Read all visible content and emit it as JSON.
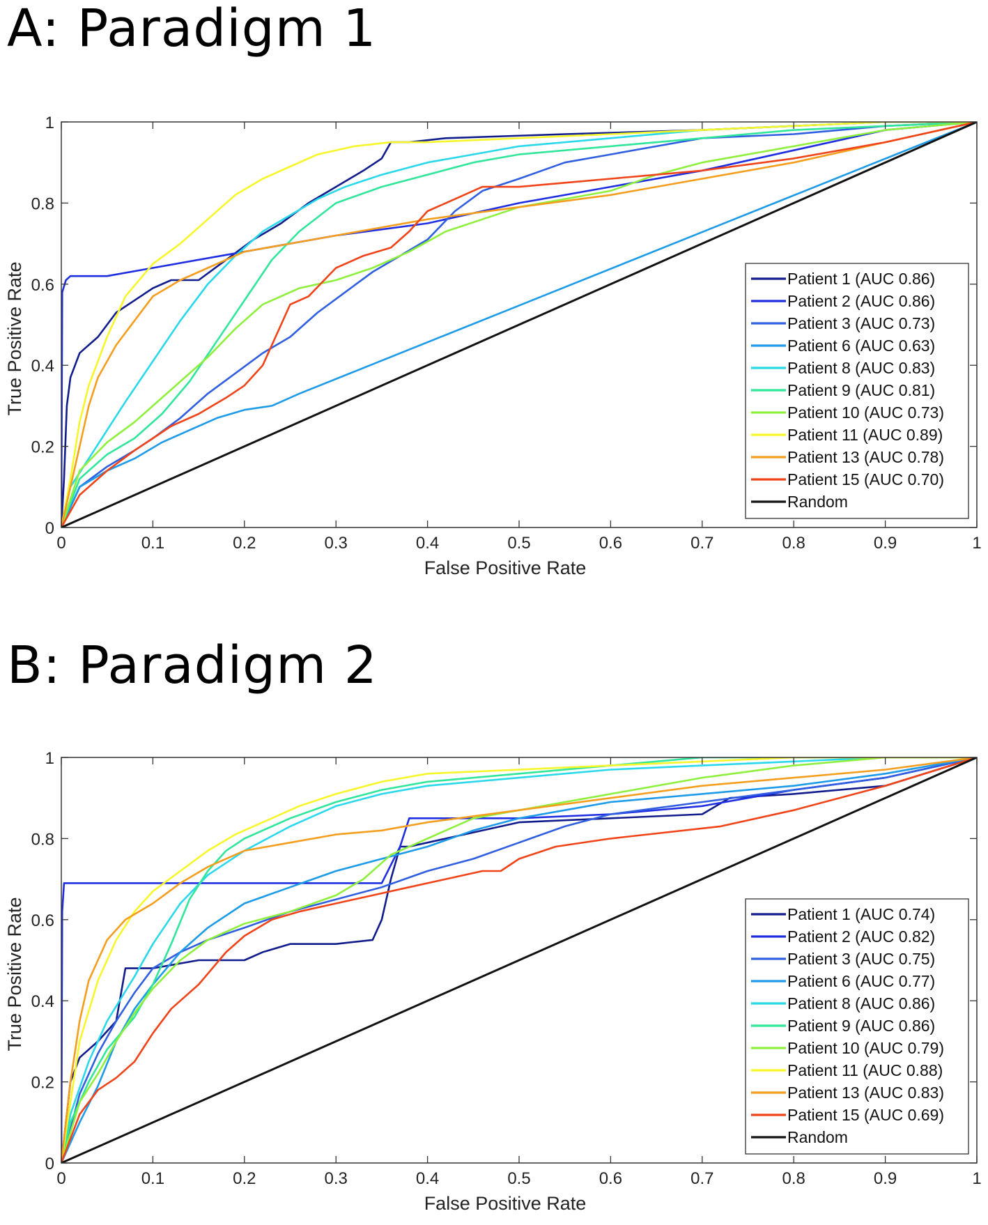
{
  "panels": [
    {
      "title": "A: Paradigm 1"
    },
    {
      "title": "B: Paradigm 2"
    }
  ],
  "chart_data": [
    {
      "type": "line",
      "title": "A: Paradigm 1",
      "xlabel": "False Positive Rate",
      "ylabel": "True Positive Rate",
      "xlim": [
        0,
        1
      ],
      "ylim": [
        0,
        1
      ],
      "xticks": [
        "0",
        "0.1",
        "0.2",
        "0.3",
        "0.4",
        "0.5",
        "0.6",
        "0.7",
        "0.8",
        "0.9",
        "1"
      ],
      "yticks": [
        "0",
        "0.2",
        "0.4",
        "0.6",
        "0.8",
        "1"
      ],
      "legend_position": "lower-right",
      "series": [
        {
          "name": "Patient 1 (AUC 0.86)",
          "color": "#101c8c",
          "x": [
            0,
            0.003,
            0.006,
            0.01,
            0.02,
            0.03,
            0.04,
            0.05,
            0.06,
            0.08,
            0.1,
            0.12,
            0.15,
            0.18,
            0.21,
            0.24,
            0.27,
            0.3,
            0.33,
            0.35,
            0.36,
            0.38,
            0.42,
            0.55,
            0.7,
            0.8,
            0.9,
            1
          ],
          "y": [
            0,
            0.12,
            0.3,
            0.37,
            0.43,
            0.45,
            0.47,
            0.5,
            0.53,
            0.56,
            0.59,
            0.61,
            0.61,
            0.66,
            0.71,
            0.75,
            0.8,
            0.84,
            0.88,
            0.91,
            0.95,
            0.95,
            0.96,
            0.97,
            0.98,
            0.99,
            1,
            1
          ]
        },
        {
          "name": "Patient 2 (AUC 0.86)",
          "color": "#1e2ee0",
          "x": [
            0,
            0.001,
            0.005,
            0.01,
            0.05,
            0.1,
            0.2,
            0.3,
            0.4,
            0.5,
            0.6,
            0.7,
            0.8,
            0.9,
            1
          ],
          "y": [
            0,
            0.58,
            0.61,
            0.62,
            0.62,
            0.64,
            0.68,
            0.72,
            0.75,
            0.8,
            0.84,
            0.88,
            0.93,
            0.98,
            1
          ]
        },
        {
          "name": "Patient 3 (AUC 0.73)",
          "color": "#2f5ee0",
          "x": [
            0,
            0.02,
            0.05,
            0.08,
            0.1,
            0.13,
            0.16,
            0.19,
            0.22,
            0.25,
            0.28,
            0.31,
            0.34,
            0.37,
            0.4,
            0.43,
            0.46,
            0.5,
            0.55,
            0.6,
            0.65,
            0.7,
            0.8,
            0.9,
            1
          ],
          "y": [
            0,
            0.1,
            0.15,
            0.19,
            0.22,
            0.27,
            0.33,
            0.38,
            0.43,
            0.47,
            0.53,
            0.58,
            0.63,
            0.67,
            0.71,
            0.78,
            0.83,
            0.86,
            0.9,
            0.92,
            0.94,
            0.96,
            0.97,
            0.99,
            1
          ]
        },
        {
          "name": "Patient 6 (AUC 0.63)",
          "color": "#1d9be8",
          "x": [
            0,
            0.02,
            0.05,
            0.08,
            0.11,
            0.14,
            0.17,
            0.2,
            0.23,
            0.26,
            1
          ],
          "y": [
            0,
            0.1,
            0.14,
            0.17,
            0.21,
            0.24,
            0.27,
            0.29,
            0.3,
            0.33,
            1
          ]
        },
        {
          "name": "Patient 8 (AUC 0.83)",
          "color": "#2ad8ec",
          "x": [
            0,
            0.01,
            0.03,
            0.05,
            0.07,
            0.1,
            0.13,
            0.16,
            0.19,
            0.22,
            0.25,
            0.28,
            0.31,
            0.35,
            0.4,
            0.45,
            0.5,
            0.6,
            0.7,
            0.8,
            0.9,
            1
          ],
          "y": [
            0,
            0.1,
            0.17,
            0.24,
            0.31,
            0.41,
            0.51,
            0.6,
            0.67,
            0.73,
            0.77,
            0.81,
            0.84,
            0.87,
            0.9,
            0.92,
            0.94,
            0.96,
            0.98,
            0.99,
            1,
            1
          ]
        },
        {
          "name": "Patient 9 (AUC 0.81)",
          "color": "#2fe69a",
          "x": [
            0,
            0.02,
            0.05,
            0.08,
            0.11,
            0.14,
            0.17,
            0.2,
            0.23,
            0.26,
            0.3,
            0.35,
            0.4,
            0.45,
            0.5,
            0.6,
            0.7,
            0.8,
            0.9,
            1
          ],
          "y": [
            0,
            0.12,
            0.18,
            0.22,
            0.28,
            0.36,
            0.46,
            0.56,
            0.66,
            0.73,
            0.8,
            0.84,
            0.87,
            0.9,
            0.92,
            0.94,
            0.96,
            0.98,
            0.99,
            1
          ]
        },
        {
          "name": "Patient 10 (AUC 0.73)",
          "color": "#8ef03c",
          "x": [
            0,
            0.02,
            0.05,
            0.08,
            0.1,
            0.13,
            0.16,
            0.19,
            0.22,
            0.26,
            0.3,
            0.34,
            0.38,
            0.42,
            0.46,
            0.5,
            0.55,
            0.6,
            0.65,
            0.7,
            0.8,
            0.9,
            1
          ],
          "y": [
            0,
            0.14,
            0.21,
            0.26,
            0.3,
            0.36,
            0.42,
            0.49,
            0.55,
            0.59,
            0.61,
            0.64,
            0.68,
            0.73,
            0.76,
            0.79,
            0.81,
            0.83,
            0.87,
            0.9,
            0.94,
            0.98,
            1
          ]
        },
        {
          "name": "Patient 11 (AUC 0.89)",
          "color": "#f6f62a",
          "x": [
            0,
            0.01,
            0.02,
            0.03,
            0.05,
            0.07,
            0.1,
            0.13,
            0.16,
            0.19,
            0.22,
            0.25,
            0.28,
            0.32,
            0.36,
            0.4,
            0.5,
            0.6,
            0.7,
            0.8,
            0.9,
            1
          ],
          "y": [
            0,
            0.12,
            0.26,
            0.35,
            0.47,
            0.57,
            0.65,
            0.7,
            0.76,
            0.82,
            0.86,
            0.89,
            0.92,
            0.94,
            0.95,
            0.95,
            0.96,
            0.97,
            0.98,
            0.99,
            1,
            1
          ]
        },
        {
          "name": "Patient 13 (AUC 0.78)",
          "color": "#f59e1e",
          "x": [
            0,
            0.01,
            0.02,
            0.03,
            0.04,
            0.06,
            0.08,
            0.1,
            0.13,
            0.16,
            0.2,
            0.25,
            0.3,
            0.4,
            0.5,
            0.6,
            0.7,
            0.8,
            0.9,
            1
          ],
          "y": [
            0,
            0.1,
            0.2,
            0.3,
            0.37,
            0.45,
            0.51,
            0.57,
            0.61,
            0.64,
            0.68,
            0.7,
            0.72,
            0.76,
            0.79,
            0.82,
            0.86,
            0.9,
            0.95,
            1
          ]
        },
        {
          "name": "Patient 15 (AUC 0.70)",
          "color": "#f04418",
          "x": [
            0,
            0.02,
            0.05,
            0.08,
            0.1,
            0.12,
            0.15,
            0.18,
            0.2,
            0.22,
            0.25,
            0.27,
            0.3,
            0.33,
            0.36,
            0.38,
            0.4,
            0.42,
            0.46,
            0.5,
            0.55,
            0.6,
            0.7,
            0.8,
            0.9,
            1
          ],
          "y": [
            0,
            0.08,
            0.14,
            0.19,
            0.22,
            0.25,
            0.28,
            0.32,
            0.35,
            0.4,
            0.55,
            0.57,
            0.64,
            0.67,
            0.69,
            0.73,
            0.78,
            0.8,
            0.84,
            0.84,
            0.85,
            0.86,
            0.88,
            0.91,
            0.95,
            1
          ]
        },
        {
          "name": "Random",
          "color": "#111111",
          "x": [
            0,
            1
          ],
          "y": [
            0,
            1
          ]
        }
      ]
    },
    {
      "type": "line",
      "title": "B: Paradigm 2",
      "xlabel": "False Positive Rate",
      "ylabel": "True Positive Rate",
      "xlim": [
        0,
        1
      ],
      "ylim": [
        0,
        1
      ],
      "xticks": [
        "0",
        "0.1",
        "0.2",
        "0.3",
        "0.4",
        "0.5",
        "0.6",
        "0.7",
        "0.8",
        "0.9",
        "1"
      ],
      "yticks": [
        "0",
        "0.2",
        "0.4",
        "0.6",
        "0.8",
        "1"
      ],
      "legend_position": "lower-right",
      "series": [
        {
          "name": "Patient 1 (AUC 0.74)",
          "color": "#101c8c",
          "x": [
            0,
            0.01,
            0.02,
            0.04,
            0.06,
            0.07,
            0.1,
            0.15,
            0.2,
            0.22,
            0.25,
            0.3,
            0.34,
            0.35,
            0.36,
            0.37,
            0.38,
            0.42,
            0.5,
            0.6,
            0.7,
            0.73,
            0.8,
            0.9,
            1
          ],
          "y": [
            0,
            0.2,
            0.26,
            0.3,
            0.35,
            0.48,
            0.48,
            0.5,
            0.5,
            0.52,
            0.54,
            0.54,
            0.55,
            0.6,
            0.7,
            0.78,
            0.78,
            0.8,
            0.84,
            0.85,
            0.86,
            0.9,
            0.91,
            0.93,
            1
          ]
        },
        {
          "name": "Patient 2 (AUC 0.82)",
          "color": "#1e2ee0",
          "x": [
            0,
            0.001,
            0.003,
            0.05,
            0.1,
            0.2,
            0.3,
            0.35,
            0.37,
            0.38,
            0.42,
            0.5,
            0.6,
            0.7,
            0.8,
            0.9,
            1
          ],
          "y": [
            0,
            0.62,
            0.69,
            0.69,
            0.69,
            0.69,
            0.69,
            0.69,
            0.78,
            0.85,
            0.85,
            0.85,
            0.86,
            0.88,
            0.92,
            0.95,
            1
          ]
        },
        {
          "name": "Patient 3 (AUC 0.75)",
          "color": "#2f5ee0",
          "x": [
            0,
            0.02,
            0.04,
            0.06,
            0.08,
            0.1,
            0.13,
            0.16,
            0.2,
            0.25,
            0.3,
            0.35,
            0.4,
            0.45,
            0.5,
            0.55,
            0.6,
            0.7,
            0.8,
            0.9,
            1
          ],
          "y": [
            0,
            0.17,
            0.27,
            0.35,
            0.42,
            0.48,
            0.52,
            0.55,
            0.58,
            0.62,
            0.65,
            0.68,
            0.72,
            0.75,
            0.79,
            0.83,
            0.86,
            0.89,
            0.92,
            0.95,
            1
          ]
        },
        {
          "name": "Patient 6 (AUC 0.77)",
          "color": "#1d9be8",
          "x": [
            0,
            0.02,
            0.04,
            0.06,
            0.08,
            0.1,
            0.13,
            0.16,
            0.2,
            0.25,
            0.3,
            0.35,
            0.4,
            0.45,
            0.5,
            0.55,
            0.6,
            0.7,
            0.8,
            0.9,
            1
          ],
          "y": [
            0,
            0.1,
            0.19,
            0.3,
            0.38,
            0.44,
            0.52,
            0.58,
            0.64,
            0.68,
            0.72,
            0.75,
            0.78,
            0.82,
            0.85,
            0.87,
            0.89,
            0.91,
            0.93,
            0.96,
            1
          ]
        },
        {
          "name": "Patient 8 (AUC 0.86)",
          "color": "#2ad8ec",
          "x": [
            0,
            0.01,
            0.03,
            0.05,
            0.08,
            0.1,
            0.13,
            0.16,
            0.2,
            0.25,
            0.3,
            0.35,
            0.4,
            0.5,
            0.6,
            0.7,
            0.8,
            0.9,
            1
          ],
          "y": [
            0,
            0.12,
            0.25,
            0.35,
            0.46,
            0.54,
            0.64,
            0.71,
            0.77,
            0.83,
            0.88,
            0.91,
            0.93,
            0.95,
            0.97,
            0.98,
            0.99,
            1,
            1
          ]
        },
        {
          "name": "Patient 9 (AUC 0.86)",
          "color": "#2fe69a",
          "x": [
            0,
            0.01,
            0.03,
            0.05,
            0.08,
            0.1,
            0.12,
            0.14,
            0.16,
            0.18,
            0.2,
            0.25,
            0.3,
            0.35,
            0.4,
            0.5,
            0.6,
            0.7,
            0.8,
            0.9,
            1
          ],
          "y": [
            0,
            0.1,
            0.2,
            0.28,
            0.36,
            0.44,
            0.54,
            0.65,
            0.72,
            0.77,
            0.8,
            0.85,
            0.89,
            0.92,
            0.94,
            0.96,
            0.98,
            1,
            1,
            1,
            1
          ]
        },
        {
          "name": "Patient 10 (AUC 0.79)",
          "color": "#8ef03c",
          "x": [
            0,
            0.02,
            0.04,
            0.06,
            0.08,
            0.1,
            0.13,
            0.16,
            0.2,
            0.25,
            0.3,
            0.33,
            0.36,
            0.4,
            0.45,
            0.5,
            0.6,
            0.7,
            0.8,
            0.9,
            1
          ],
          "y": [
            0,
            0.15,
            0.22,
            0.3,
            0.37,
            0.43,
            0.5,
            0.55,
            0.59,
            0.62,
            0.66,
            0.7,
            0.76,
            0.8,
            0.85,
            0.87,
            0.91,
            0.95,
            0.98,
            1,
            1
          ]
        },
        {
          "name": "Patient 11 (AUC 0.88)",
          "color": "#f6f62a",
          "x": [
            0,
            0.01,
            0.02,
            0.04,
            0.06,
            0.08,
            0.1,
            0.13,
            0.16,
            0.19,
            0.22,
            0.26,
            0.3,
            0.35,
            0.4,
            0.5,
            0.6,
            0.7,
            0.8,
            0.9,
            1
          ],
          "y": [
            0,
            0.15,
            0.3,
            0.45,
            0.55,
            0.62,
            0.67,
            0.72,
            0.77,
            0.81,
            0.84,
            0.88,
            0.91,
            0.94,
            0.96,
            0.97,
            0.98,
            0.99,
            1,
            1,
            1
          ]
        },
        {
          "name": "Patient 13 (AUC 0.83)",
          "color": "#f59e1e",
          "x": [
            0,
            0.01,
            0.02,
            0.03,
            0.05,
            0.07,
            0.1,
            0.13,
            0.16,
            0.2,
            0.25,
            0.3,
            0.35,
            0.4,
            0.5,
            0.6,
            0.7,
            0.8,
            0.9,
            1
          ],
          "y": [
            0,
            0.2,
            0.35,
            0.45,
            0.55,
            0.6,
            0.64,
            0.69,
            0.73,
            0.77,
            0.79,
            0.81,
            0.82,
            0.84,
            0.87,
            0.9,
            0.93,
            0.95,
            0.97,
            1
          ]
        },
        {
          "name": "Patient 15 (AUC 0.69)",
          "color": "#f04418",
          "x": [
            0,
            0.02,
            0.04,
            0.06,
            0.08,
            0.1,
            0.12,
            0.15,
            0.18,
            0.2,
            0.23,
            0.26,
            0.3,
            0.34,
            0.38,
            0.42,
            0.46,
            0.48,
            0.5,
            0.54,
            0.6,
            0.72,
            0.8,
            0.9,
            1
          ],
          "y": [
            0,
            0.12,
            0.18,
            0.21,
            0.25,
            0.32,
            0.38,
            0.44,
            0.52,
            0.56,
            0.6,
            0.62,
            0.64,
            0.66,
            0.68,
            0.7,
            0.72,
            0.72,
            0.75,
            0.78,
            0.8,
            0.83,
            0.87,
            0.93,
            1
          ]
        },
        {
          "name": "Random",
          "color": "#111111",
          "x": [
            0,
            1
          ],
          "y": [
            0,
            1
          ]
        }
      ]
    }
  ]
}
